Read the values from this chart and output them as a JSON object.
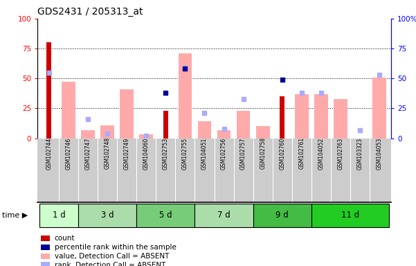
{
  "title": "GDS2431 / 205313_at",
  "samples": [
    "GSM102744",
    "GSM102746",
    "GSM102747",
    "GSM102748",
    "GSM102749",
    "GSM104060",
    "GSM102753",
    "GSM102755",
    "GSM104051",
    "GSM102756",
    "GSM102757",
    "GSM102758",
    "GSM102760",
    "GSM102761",
    "GSM104052",
    "GSM102763",
    "GSM103323",
    "GSM104053"
  ],
  "time_groups": [
    {
      "label": "1 d",
      "start": 0,
      "end": 1,
      "color": "#ccffcc"
    },
    {
      "label": "3 d",
      "start": 2,
      "end": 4,
      "color": "#aaddaa"
    },
    {
      "label": "5 d",
      "start": 5,
      "end": 7,
      "color": "#77cc77"
    },
    {
      "label": "7 d",
      "start": 8,
      "end": 10,
      "color": "#aaddaa"
    },
    {
      "label": "9 d",
      "start": 11,
      "end": 13,
      "color": "#44bb44"
    },
    {
      "label": "11 d",
      "start": 14,
      "end": 17,
      "color": "#22cc22"
    }
  ],
  "count_bars": [
    80,
    0,
    0,
    0,
    0,
    0,
    23,
    0,
    0,
    0,
    0,
    0,
    35,
    0,
    0,
    0,
    0,
    0
  ],
  "percentile_rank_dots": [
    null,
    null,
    null,
    null,
    null,
    null,
    38,
    58,
    null,
    null,
    null,
    null,
    49,
    null,
    null,
    null,
    null,
    null
  ],
  "pink_bars": [
    null,
    47,
    7,
    11,
    41,
    3,
    null,
    71,
    14,
    7,
    23,
    10,
    null,
    37,
    37,
    33,
    null,
    51
  ],
  "light_blue_dots": [
    55,
    null,
    16,
    4,
    null,
    2,
    null,
    59,
    21,
    8,
    33,
    null,
    null,
    38,
    38,
    null,
    7,
    53
  ],
  "ylim_left": [
    0,
    100
  ],
  "ylim_right": [
    0,
    100
  ],
  "grid_values": [
    25,
    50,
    75
  ],
  "count_color": "#cc0000",
  "percentile_color": "#000099",
  "pink_color": "#ffaaaa",
  "light_blue_color": "#aaaaff",
  "sample_bg_color": "#cccccc",
  "legend_items": [
    {
      "label": "count",
      "color": "#cc0000"
    },
    {
      "label": "percentile rank within the sample",
      "color": "#000099"
    },
    {
      "label": "value, Detection Call = ABSENT",
      "color": "#ffaaaa"
    },
    {
      "label": "rank, Detection Call = ABSENT",
      "color": "#aaaaff"
    }
  ]
}
